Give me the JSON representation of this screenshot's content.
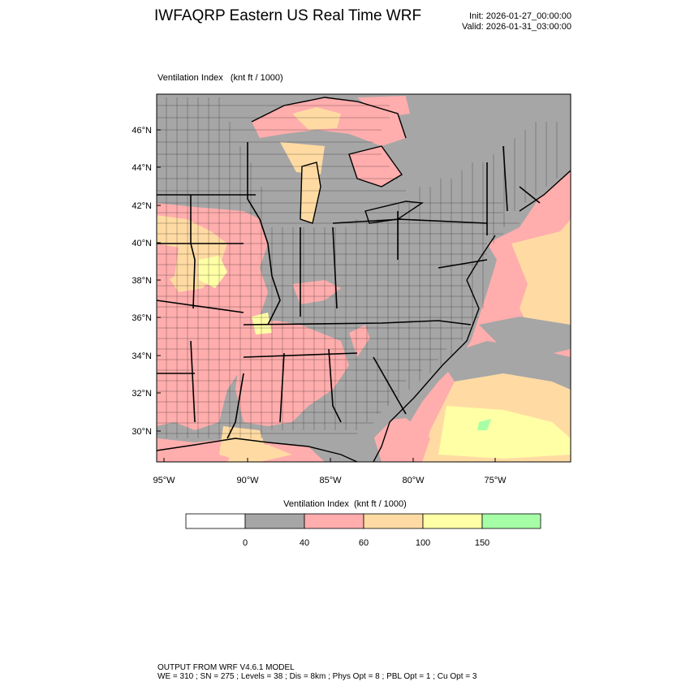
{
  "header": {
    "title": "IWFAQRP Eastern US Real Time WRF",
    "init": "Init: 2026-01-27_00:00:00",
    "valid": "Valid: 2026-01-31_03:00:00"
  },
  "map": {
    "title": "Ventilation Index   (knt ft / 1000)",
    "lat_labels": [
      "46°N",
      "44°N",
      "42°N",
      "40°N",
      "38°N",
      "36°N",
      "34°N",
      "32°N",
      "30°N"
    ],
    "lon_labels": [
      "95°W",
      "90°W",
      "85°W",
      "80°W",
      "75°W"
    ],
    "colors": {
      "land_gray": "#a6a6a6",
      "pink": "#ffadad",
      "orange": "#ffdba3",
      "yellow": "#ffffa6",
      "green": "#a6ffa6"
    }
  },
  "colorbar": {
    "title": "Ventilation Index  (knt ft / 1000)",
    "labels": [
      "0",
      "40",
      "60",
      "100",
      "150"
    ],
    "bins": [
      "#ffffff",
      "#a6a6a6",
      "#ffadad",
      "#ffdba3",
      "#ffffa6",
      "#a6ffa6"
    ]
  },
  "footer": {
    "line1": "OUTPUT FROM WRF V4.6.1 MODEL",
    "line2": "WE = 310 ; SN = 275 ; Levels = 38 ; Dis = 8km ; Phys Opt = 8 ; PBL Opt = 1 ; Cu Opt = 3"
  }
}
